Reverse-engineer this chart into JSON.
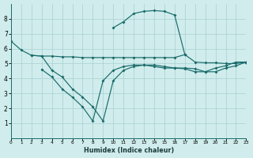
{
  "bg_color": "#d0ecec",
  "grid_color": "#a8d0d0",
  "line_color": "#1a6b6b",
  "xlim": [
    0,
    23
  ],
  "ylim": [
    0,
    9
  ],
  "xticks": [
    0,
    1,
    2,
    3,
    4,
    5,
    6,
    7,
    8,
    9,
    10,
    11,
    12,
    13,
    14,
    15,
    16,
    17,
    18,
    19,
    20,
    21,
    22,
    23
  ],
  "yticks": [
    1,
    2,
    3,
    4,
    5,
    6,
    7,
    8
  ],
  "xlabel": "Humidex (Indice chaleur)",
  "lines": [
    {
      "x": [
        0,
        1,
        2,
        3,
        4,
        5,
        6,
        7,
        8,
        9,
        10,
        11,
        12,
        13,
        14,
        15,
        16,
        17,
        18,
        19,
        20,
        21,
        22,
        23
      ],
      "y": [
        6.5,
        5.9,
        5.55,
        5.5,
        5.5,
        5.45,
        5.45,
        5.4,
        5.4,
        5.4,
        5.4,
        5.4,
        5.4,
        5.4,
        5.4,
        5.4,
        5.4,
        5.6,
        5.1,
        5.05,
        5.05,
        5.0,
        5.0,
        5.1
      ]
    },
    {
      "x": [
        2,
        3,
        4,
        5,
        6,
        7,
        8,
        9,
        10,
        11,
        12,
        13,
        14,
        15,
        16,
        17,
        18,
        19,
        20,
        21,
        22,
        23
      ],
      "y": [
        5.55,
        5.5,
        4.55,
        4.1,
        3.3,
        2.75,
        2.1,
        1.15,
        3.85,
        4.55,
        4.8,
        4.9,
        4.9,
        4.8,
        4.7,
        4.7,
        4.65,
        4.45,
        4.45,
        4.7,
        4.85,
        5.1
      ]
    },
    {
      "x": [
        10,
        11,
        12,
        13,
        14,
        15,
        16,
        17
      ],
      "y": [
        7.4,
        7.8,
        8.35,
        8.5,
        8.55,
        8.5,
        8.25,
        5.6
      ]
    },
    {
      "x": [
        3,
        4,
        5,
        6,
        7,
        8,
        9,
        10,
        11,
        12,
        13,
        14,
        15,
        16,
        17,
        18,
        19,
        20,
        21,
        22,
        23
      ],
      "y": [
        4.6,
        4.1,
        3.3,
        2.75,
        2.1,
        1.15,
        3.85,
        4.55,
        4.8,
        4.9,
        4.9,
        4.8,
        4.7,
        4.7,
        4.65,
        4.45,
        4.45,
        4.7,
        4.85,
        5.1,
        5.1
      ]
    }
  ]
}
